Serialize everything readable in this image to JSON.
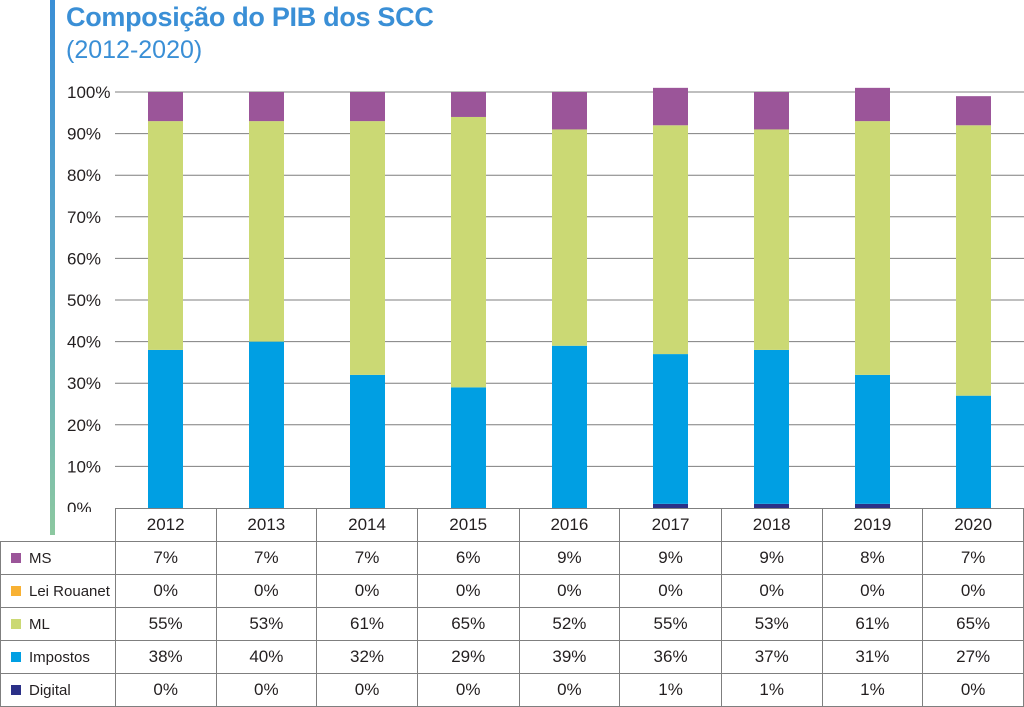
{
  "header": {
    "title": "Composição do PIB dos SCC",
    "subtitle": "(2012-2020)"
  },
  "colors": {
    "MS": "#9b5599",
    "Lei Rouanet": "#f8b133",
    "ML": "#cbd974",
    "Impostos": "#009fe3",
    "Digital": "#2b3088",
    "accent": "#3a8fd6",
    "grid": "#7f7f7f"
  },
  "chart_data": {
    "type": "bar",
    "stacked": true,
    "normalized": true,
    "categories": [
      "2012",
      "2013",
      "2014",
      "2015",
      "2016",
      "2017",
      "2018",
      "2019",
      "2020"
    ],
    "y_ticks": [
      "0%",
      "10%",
      "20%",
      "30%",
      "40%",
      "50%",
      "60%",
      "70%",
      "80%",
      "90%",
      "100%"
    ],
    "ylim": [
      0,
      100
    ],
    "grid": true,
    "legend": "table-left",
    "series": [
      {
        "name": "Digital",
        "values": [
          0,
          0,
          0,
          0,
          0,
          1,
          1,
          1,
          0
        ]
      },
      {
        "name": "Impostos",
        "values": [
          38,
          40,
          32,
          29,
          39,
          36,
          37,
          31,
          27
        ]
      },
      {
        "name": "ML",
        "values": [
          55,
          53,
          61,
          65,
          52,
          55,
          53,
          61,
          65
        ]
      },
      {
        "name": "Lei Rouanet",
        "values": [
          0,
          0,
          0,
          0,
          0,
          0,
          0,
          0,
          0
        ]
      },
      {
        "name": "MS",
        "values": [
          7,
          7,
          7,
          6,
          9,
          9,
          9,
          8,
          7
        ]
      }
    ],
    "table_rows": [
      {
        "name": "MS",
        "labels": [
          "7%",
          "7%",
          "7%",
          "6%",
          "9%",
          "9%",
          "9%",
          "8%",
          "7%"
        ]
      },
      {
        "name": "Lei Rouanet",
        "labels": [
          "0%",
          "0%",
          "0%",
          "0%",
          "0%",
          "0%",
          "0%",
          "0%",
          "0%"
        ]
      },
      {
        "name": "ML",
        "labels": [
          "55%",
          "53%",
          "61%",
          "65%",
          "52%",
          "55%",
          "53%",
          "61%",
          "65%"
        ]
      },
      {
        "name": "Impostos",
        "labels": [
          "38%",
          "40%",
          "32%",
          "29%",
          "39%",
          "36%",
          "37%",
          "31%",
          "27%"
        ]
      },
      {
        "name": "Digital",
        "labels": [
          "0%",
          "0%",
          "0%",
          "0%",
          "0%",
          "1%",
          "1%",
          "1%",
          "0%"
        ]
      }
    ]
  }
}
